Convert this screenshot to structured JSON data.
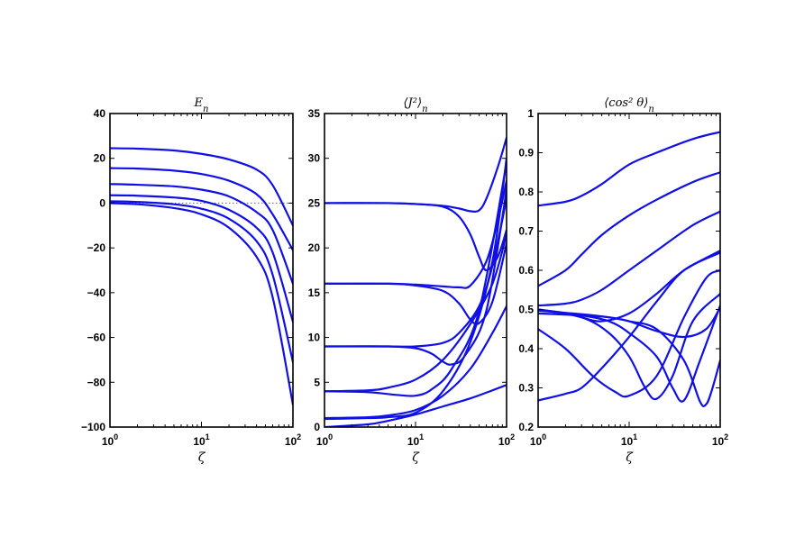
{
  "chart_data": [
    {
      "type": "line",
      "title": "E_n",
      "xlabel": "ζ",
      "xscale": "log",
      "xlim": [
        1,
        100
      ],
      "ylim": [
        -100,
        40
      ],
      "yticks": [
        "40",
        "20",
        "0",
        "−20",
        "−40",
        "−60",
        "−80",
        "−100"
      ],
      "ytick_values": [
        40,
        20,
        0,
        -20,
        -40,
        -60,
        -80,
        -100
      ],
      "xticks": [
        {
          "base": "10",
          "exp": "0",
          "value": 1
        },
        {
          "base": "10",
          "exp": "1",
          "value": 10
        },
        {
          "base": "10",
          "exp": "2",
          "value": 100
        }
      ],
      "zero_line": true,
      "series": [
        {
          "x": [
            1,
            2,
            5,
            10,
            20,
            40,
            60,
            100
          ],
          "y": [
            24.5,
            24.3,
            23.5,
            22,
            19.5,
            15,
            8,
            -10
          ]
        },
        {
          "x": [
            1,
            2,
            5,
            10,
            20,
            40,
            60,
            100
          ],
          "y": [
            15.6,
            15.4,
            14.5,
            13,
            10,
            4,
            -5,
            -21
          ]
        },
        {
          "x": [
            1,
            2,
            5,
            10,
            20,
            40,
            60,
            100
          ],
          "y": [
            8.5,
            8.2,
            7.5,
            6,
            3,
            -4,
            -12,
            -36
          ]
        },
        {
          "x": [
            1,
            2,
            5,
            10,
            20,
            40,
            60,
            100
          ],
          "y": [
            3.5,
            3.3,
            2.5,
            1,
            -3,
            -11,
            -22,
            -53
          ]
        },
        {
          "x": [
            1,
            2,
            5,
            10,
            20,
            40,
            60,
            100
          ],
          "y": [
            0.8,
            0.5,
            -0.5,
            -2.5,
            -7,
            -17,
            -32,
            -71
          ]
        },
        {
          "x": [
            1,
            2,
            5,
            10,
            20,
            40,
            60,
            100
          ],
          "y": [
            0,
            -0.5,
            -2.2,
            -5,
            -11,
            -24,
            -42,
            -90
          ]
        }
      ]
    },
    {
      "type": "line",
      "title": "⟨J²⟩_n",
      "xlabel": "ζ",
      "xscale": "log",
      "xlim": [
        1,
        100
      ],
      "ylim": [
        0,
        35
      ],
      "yticks": [
        "0",
        "5",
        "10",
        "15",
        "20",
        "25",
        "30",
        "35"
      ],
      "ytick_values": [
        0,
        5,
        10,
        15,
        20,
        25,
        30,
        35
      ],
      "xticks": [
        {
          "base": "10",
          "exp": "0",
          "value": 1
        },
        {
          "base": "10",
          "exp": "1",
          "value": 10
        },
        {
          "base": "10",
          "exp": "2",
          "value": 100
        }
      ],
      "series": [
        {
          "x": [
            1,
            5,
            10,
            20,
            30,
            40,
            50,
            60,
            80,
            100
          ],
          "y": [
            25,
            25,
            24.9,
            24.7,
            24.4,
            24.1,
            24.2,
            25.5,
            29,
            32.3
          ]
        },
        {
          "x": [
            1,
            5,
            10,
            20,
            30,
            40,
            50,
            60,
            80,
            100
          ],
          "y": [
            25,
            25,
            24.9,
            24.6,
            23.5,
            21.5,
            19,
            17.5,
            19,
            22
          ]
        },
        {
          "x": [
            1,
            5,
            10,
            20,
            30,
            40,
            60,
            80,
            100
          ],
          "y": [
            16,
            16,
            15.9,
            15.7,
            15.6,
            15.8,
            18.5,
            23,
            27.5
          ]
        },
        {
          "x": [
            1,
            5,
            10,
            20,
            30,
            40,
            50,
            70,
            100
          ],
          "y": [
            16,
            16,
            15.8,
            15.2,
            13.8,
            12,
            11.6,
            14,
            20.5
          ]
        },
        {
          "x": [
            1,
            5,
            10,
            20,
            30,
            50,
            70,
            100
          ],
          "y": [
            9,
            9,
            9,
            9.4,
            10.5,
            13.5,
            18,
            25.5
          ]
        },
        {
          "x": [
            1,
            5,
            10,
            15,
            20,
            25,
            35,
            60,
            100
          ],
          "y": [
            9,
            9,
            8.8,
            8.2,
            7.3,
            7,
            8,
            13,
            26.5
          ]
        },
        {
          "x": [
            1,
            3,
            5,
            10,
            20,
            40,
            70,
            100
          ],
          "y": [
            4,
            4.1,
            4.4,
            5.3,
            7.5,
            11.5,
            16,
            21.5
          ]
        },
        {
          "x": [
            1,
            3,
            6,
            10,
            15,
            25,
            50,
            100
          ],
          "y": [
            4,
            3.9,
            3.6,
            3.5,
            4.2,
            6.5,
            13,
            29.5
          ]
        },
        {
          "x": [
            1,
            3,
            5,
            10,
            20,
            40,
            70,
            100
          ],
          "y": [
            1,
            1.1,
            1.3,
            1.9,
            3.5,
            6.5,
            10.5,
            13.5
          ]
        },
        {
          "x": [
            1,
            3,
            5,
            10,
            20,
            40,
            70,
            100
          ],
          "y": [
            0.9,
            1,
            1.1,
            1.6,
            4,
            9.5,
            18.5,
            30
          ]
        },
        {
          "x": [
            1,
            3,
            5,
            10,
            20,
            40,
            70,
            100
          ],
          "y": [
            0,
            0.3,
            0.7,
            1.4,
            2.3,
            3.2,
            4.1,
            4.7
          ]
        }
      ]
    },
    {
      "type": "line",
      "title": "⟨cos² θ⟩_n",
      "xlabel": "ζ",
      "xscale": "log",
      "xlim": [
        1,
        100
      ],
      "ylim": [
        0.2,
        1
      ],
      "yticks": [
        "0.2",
        "0.3",
        "0.4",
        "0.5",
        "0.6",
        "0.7",
        "0.8",
        "0.9",
        "1"
      ],
      "ytick_values": [
        0.2,
        0.3,
        0.4,
        0.5,
        0.6,
        0.7,
        0.8,
        0.9,
        1.0
      ],
      "xticks": [
        {
          "base": "10",
          "exp": "0",
          "value": 1
        },
        {
          "base": "10",
          "exp": "1",
          "value": 10
        },
        {
          "base": "10",
          "exp": "2",
          "value": 100
        }
      ],
      "series": [
        {
          "x": [
            1,
            2,
            3,
            5,
            10,
            20,
            50,
            100
          ],
          "y": [
            0.765,
            0.775,
            0.79,
            0.82,
            0.87,
            0.9,
            0.935,
            0.953
          ]
        },
        {
          "x": [
            1,
            2,
            3,
            5,
            10,
            20,
            50,
            100
          ],
          "y": [
            0.56,
            0.6,
            0.64,
            0.69,
            0.74,
            0.78,
            0.825,
            0.85
          ]
        },
        {
          "x": [
            1,
            2,
            3,
            5,
            10,
            20,
            50,
            100
          ],
          "y": [
            0.51,
            0.515,
            0.525,
            0.55,
            0.6,
            0.65,
            0.715,
            0.75
          ]
        },
        {
          "x": [
            1,
            2,
            3,
            5,
            10,
            20,
            40,
            100
          ],
          "y": [
            0.5,
            0.49,
            0.48,
            0.47,
            0.49,
            0.54,
            0.6,
            0.65
          ]
        },
        {
          "x": [
            1,
            2,
            3,
            5,
            10,
            20,
            40,
            100
          ],
          "y": [
            0.268,
            0.285,
            0.3,
            0.35,
            0.43,
            0.52,
            0.6,
            0.645
          ]
        },
        {
          "x": [
            1,
            2,
            4,
            7,
            10,
            20,
            40,
            70,
            100
          ],
          "y": [
            0.45,
            0.4,
            0.33,
            0.29,
            0.28,
            0.33,
            0.48,
            0.58,
            0.6
          ]
        },
        {
          "x": [
            1,
            3,
            6,
            10,
            15,
            20,
            30,
            50,
            100
          ],
          "y": [
            0.5,
            0.48,
            0.44,
            0.38,
            0.3,
            0.272,
            0.33,
            0.47,
            0.54
          ]
        },
        {
          "x": [
            1,
            3,
            6,
            10,
            20,
            30,
            40,
            60,
            100
          ],
          "y": [
            0.5,
            0.485,
            0.47,
            0.44,
            0.38,
            0.3,
            0.268,
            0.37,
            0.51
          ]
        },
        {
          "x": [
            1,
            3,
            6,
            10,
            20,
            40,
            60,
            70,
            80,
            100
          ],
          "y": [
            0.497,
            0.488,
            0.48,
            0.47,
            0.45,
            0.37,
            0.265,
            0.258,
            0.29,
            0.37
          ]
        },
        {
          "x": [
            1,
            3,
            6,
            10,
            20,
            40,
            70,
            100
          ],
          "y": [
            0.49,
            0.485,
            0.48,
            0.47,
            0.445,
            0.43,
            0.45,
            0.505
          ]
        }
      ]
    }
  ]
}
